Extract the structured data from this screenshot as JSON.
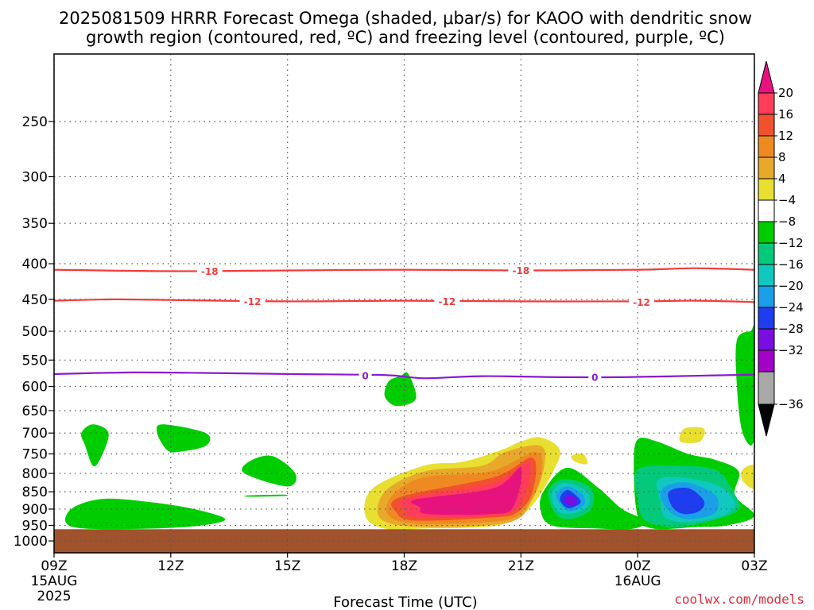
{
  "chart_data": {
    "type": "heatmap",
    "title_line1": "2025081509 HRRR Forecast Omega (shaded, μbar/s) for KAOO with dendritic snow",
    "title_line2": "growth region (contoured, red, ºC) and freezing level (contoured, purple, ºC)",
    "xlabel": "Forecast Time (UTC)",
    "credit": "coolwx.com/models",
    "x_ticks": [
      {
        "hour": 0,
        "label": "09Z",
        "sub1": "15AUG",
        "sub2": "2025"
      },
      {
        "hour": 3,
        "label": "12Z",
        "sub1": "",
        "sub2": ""
      },
      {
        "hour": 6,
        "label": "15Z",
        "sub1": "",
        "sub2": ""
      },
      {
        "hour": 9,
        "label": "18Z",
        "sub1": "",
        "sub2": ""
      },
      {
        "hour": 12,
        "label": "21Z",
        "sub1": "",
        "sub2": ""
      },
      {
        "hour": 15,
        "label": "00Z",
        "sub1": "16AUG",
        "sub2": ""
      },
      {
        "hour": 18,
        "label": "03Z",
        "sub1": "",
        "sub2": ""
      }
    ],
    "xlim": [
      0,
      18
    ],
    "ylim": [
      200,
      1040
    ],
    "y_scale": "log",
    "y_ticks": [
      250,
      300,
      350,
      400,
      450,
      500,
      550,
      600,
      650,
      700,
      750,
      800,
      850,
      900,
      950,
      1000
    ],
    "grid": true,
    "colorbar": {
      "ticks": [
        "20",
        "16",
        "12",
        "8",
        "4",
        "−4",
        "−8",
        "−12",
        "−16",
        "−20",
        "−24",
        "−28",
        "−32",
        "−36"
      ],
      "colors": [
        "#ff3d5a",
        "#f2512e",
        "#ef8a22",
        "#e8a92a",
        "#e8df30",
        "#ffffff",
        "#00cd00",
        "#05c97a",
        "#10c8bf",
        "#1a9fe8",
        "#1e3cf0",
        "#7a0ee0",
        "#a300c8",
        "#a8a8a8"
      ],
      "top_color": "#e8127f",
      "bottom_color": "#000000"
    },
    "contours": [
      {
        "value": "-18",
        "color": "#f23b3b",
        "points": [
          [
            0,
            408
          ],
          [
            3,
            410
          ],
          [
            6,
            409
          ],
          [
            9,
            408
          ],
          [
            12,
            409
          ],
          [
            15,
            408
          ],
          [
            16.5,
            406
          ],
          [
            18,
            408
          ]
        ],
        "labels": [
          [
            4.0,
            410
          ],
          [
            12.0,
            409
          ]
        ]
      },
      {
        "value": "-12",
        "color": "#f23b3b",
        "points": [
          [
            0,
            452
          ],
          [
            1.5,
            450
          ],
          [
            3,
            451
          ],
          [
            6,
            453
          ],
          [
            9,
            452
          ],
          [
            12,
            453
          ],
          [
            15,
            453
          ],
          [
            16.5,
            452
          ],
          [
            18,
            454
          ]
        ],
        "labels": [
          [
            5.1,
            453
          ],
          [
            10.1,
            453
          ],
          [
            15.1,
            454
          ]
        ]
      },
      {
        "value": "0",
        "color": "#8a1ad0",
        "points": [
          [
            0,
            576
          ],
          [
            2,
            573
          ],
          [
            4,
            574
          ],
          [
            6,
            576
          ],
          [
            8.5,
            578
          ],
          [
            9.5,
            584
          ],
          [
            11,
            580
          ],
          [
            13,
            582
          ],
          [
            14.5,
            582
          ],
          [
            16,
            580
          ],
          [
            18,
            577
          ]
        ],
        "labels": [
          [
            8.0,
            579
          ],
          [
            13.9,
            582
          ]
        ]
      }
    ],
    "omega_regions": [
      {
        "color": "#00cd00",
        "points": [
          [
            1.0,
            680
          ],
          [
            1.4,
            700
          ],
          [
            1.2,
            760
          ],
          [
            1.0,
            780
          ],
          [
            0.8,
            730
          ],
          [
            0.7,
            700
          ]
        ]
      },
      {
        "color": "#00cd00",
        "points": [
          [
            2.8,
            680
          ],
          [
            3.9,
            700
          ],
          [
            3.9,
            730
          ],
          [
            3.2,
            745
          ],
          [
            2.9,
            740
          ],
          [
            2.65,
            700
          ]
        ]
      },
      {
        "color": "#00cd00",
        "points": [
          [
            5.0,
            770
          ],
          [
            5.6,
            755
          ],
          [
            6.2,
            800
          ],
          [
            6.0,
            835
          ],
          [
            4.9,
            800
          ]
        ]
      },
      {
        "color": "#00cd00",
        "points": [
          [
            5.0,
            860
          ],
          [
            5.9,
            858
          ],
          [
            5.9,
            862
          ],
          [
            5.0,
            864
          ]
        ]
      },
      {
        "color": "#00cd00",
        "points": [
          [
            8.9,
            580
          ],
          [
            9.1,
            575
          ],
          [
            9.3,
            625
          ],
          [
            8.8,
            640
          ],
          [
            8.5,
            620
          ],
          [
            8.6,
            590
          ]
        ]
      },
      {
        "color": "#00cd00",
        "points": [
          [
            0.5,
            895
          ],
          [
            1.3,
            870
          ],
          [
            2.5,
            880
          ],
          [
            3.6,
            900
          ],
          [
            4.4,
            930
          ],
          [
            3.8,
            950
          ],
          [
            2.5,
            960
          ],
          [
            0.8,
            960
          ],
          [
            0.3,
            940
          ]
        ]
      },
      {
        "color": "#00cd00",
        "points": [
          [
            17.55,
            515
          ],
          [
            17.9,
            500
          ],
          [
            18,
            505
          ],
          [
            18,
            710
          ],
          [
            17.7,
            700
          ],
          [
            17.55,
            600
          ]
        ]
      },
      {
        "color": "#e8df30",
        "points": [
          [
            16.2,
            690
          ],
          [
            16.7,
            690
          ],
          [
            16.6,
            720
          ],
          [
            16.1,
            720
          ]
        ]
      },
      {
        "color": "#e8df30",
        "points": [
          [
            13.3,
            755
          ],
          [
            13.6,
            750
          ],
          [
            13.7,
            775
          ],
          [
            13.4,
            770
          ]
        ]
      },
      {
        "color": "#e8df30",
        "points": [
          [
            17.7,
            790
          ],
          [
            18,
            780
          ],
          [
            18,
            840
          ],
          [
            17.7,
            820
          ]
        ]
      },
      {
        "color": "#e8df30",
        "points": [
          [
            8.2,
            840
          ],
          [
            9.5,
            780
          ],
          [
            10.5,
            770
          ],
          [
            11.5,
            740
          ],
          [
            12.0,
            720
          ],
          [
            12.5,
            710
          ],
          [
            13.0,
            740
          ],
          [
            12.8,
            800
          ],
          [
            12.2,
            900
          ],
          [
            11.4,
            950
          ],
          [
            9.5,
            960
          ],
          [
            8.5,
            960
          ],
          [
            8.0,
            920
          ]
        ]
      },
      {
        "color": "#e8a92a",
        "points": [
          [
            8.5,
            850
          ],
          [
            9.5,
            795
          ],
          [
            11.0,
            780
          ],
          [
            11.6,
            745
          ],
          [
            12.5,
            730
          ],
          [
            12.6,
            780
          ],
          [
            12.3,
            870
          ],
          [
            11.7,
            940
          ],
          [
            9.5,
            955
          ],
          [
            8.4,
            930
          ]
        ]
      },
      {
        "color": "#ef8a22",
        "points": [
          [
            8.7,
            860
          ],
          [
            9.5,
            810
          ],
          [
            11.2,
            795
          ],
          [
            12.4,
            745
          ],
          [
            12.5,
            810
          ],
          [
            12.1,
            900
          ],
          [
            11.5,
            935
          ],
          [
            9.4,
            945
          ],
          [
            8.6,
            920
          ]
        ]
      },
      {
        "color": "#f2512e",
        "points": [
          [
            8.9,
            865
          ],
          [
            11.3,
            810
          ],
          [
            12.3,
            760
          ],
          [
            12.3,
            850
          ],
          [
            11.9,
            910
          ],
          [
            11.3,
            925
          ],
          [
            9.3,
            935
          ],
          [
            8.8,
            910
          ]
        ]
      },
      {
        "color": "#ff3d5a",
        "points": [
          [
            9.1,
            868
          ],
          [
            11.3,
            825
          ],
          [
            12.2,
            770
          ],
          [
            12.1,
            860
          ],
          [
            11.6,
            915
          ],
          [
            9.4,
            925
          ],
          [
            9.0,
            900
          ]
        ]
      },
      {
        "color": "#e8127f",
        "points": [
          [
            9.3,
            872
          ],
          [
            11.3,
            840
          ],
          [
            12.0,
            785
          ],
          [
            11.8,
            895
          ],
          [
            11.2,
            915
          ],
          [
            9.6,
            915
          ],
          [
            9.4,
            895
          ]
        ]
      },
      {
        "color": "#00cd00",
        "points": [
          [
            12.6,
            845
          ],
          [
            13.2,
            785
          ],
          [
            14.0,
            840
          ],
          [
            14.6,
            900
          ],
          [
            15.2,
            935
          ],
          [
            14.9,
            960
          ],
          [
            14.0,
            960
          ],
          [
            12.8,
            950
          ],
          [
            12.5,
            900
          ]
        ]
      },
      {
        "color": "#05c97a",
        "points": [
          [
            12.7,
            850
          ],
          [
            13.1,
            815
          ],
          [
            13.8,
            840
          ],
          [
            13.8,
            900
          ],
          [
            13.3,
            930
          ],
          [
            12.9,
            915
          ]
        ]
      },
      {
        "color": "#10c8bf",
        "points": [
          [
            12.8,
            855
          ],
          [
            13.1,
            825
          ],
          [
            13.7,
            850
          ],
          [
            13.7,
            895
          ],
          [
            13.2,
            915
          ],
          [
            12.9,
            900
          ]
        ]
      },
      {
        "color": "#1a9fe8",
        "points": [
          [
            12.9,
            860
          ],
          [
            13.2,
            835
          ],
          [
            13.6,
            860
          ],
          [
            13.6,
            890
          ],
          [
            13.2,
            905
          ]
        ]
      },
      {
        "color": "#1e3cf0",
        "points": [
          [
            13.0,
            870
          ],
          [
            13.2,
            845
          ],
          [
            13.5,
            870
          ],
          [
            13.5,
            885
          ],
          [
            13.2,
            897
          ]
        ]
      },
      {
        "color": "#7a0ee0",
        "points": [
          [
            13.1,
            875
          ],
          [
            13.25,
            860
          ],
          [
            13.45,
            875
          ],
          [
            13.3,
            890
          ]
        ]
      },
      {
        "color": "#00cd00",
        "points": [
          [
            15.0,
            715
          ],
          [
            15.5,
            720
          ],
          [
            16.3,
            750
          ],
          [
            17.0,
            765
          ],
          [
            17.6,
            795
          ],
          [
            17.5,
            860
          ],
          [
            18,
            920
          ],
          [
            17.3,
            950
          ],
          [
            16.5,
            955
          ],
          [
            15.4,
            960
          ],
          [
            15.0,
            920
          ],
          [
            14.9,
            780
          ]
        ]
      },
      {
        "color": "#05c97a",
        "points": [
          [
            15.0,
            790
          ],
          [
            16.0,
            780
          ],
          [
            17.0,
            790
          ],
          [
            17.4,
            840
          ],
          [
            17.6,
            900
          ],
          [
            16.9,
            935
          ],
          [
            16.0,
            955
          ],
          [
            15.2,
            935
          ],
          [
            15.0,
            870
          ]
        ]
      },
      {
        "color": "#10c8bf",
        "points": [
          [
            15.5,
            820
          ],
          [
            16.0,
            810
          ],
          [
            17.0,
            830
          ],
          [
            17.5,
            880
          ],
          [
            17.2,
            920
          ],
          [
            16.3,
            940
          ],
          [
            15.7,
            925
          ],
          [
            15.6,
            880
          ]
        ]
      },
      {
        "color": "#1a9fe8",
        "points": [
          [
            15.7,
            835
          ],
          [
            16.3,
            825
          ],
          [
            17.0,
            860
          ],
          [
            17.0,
            910
          ],
          [
            16.4,
            930
          ],
          [
            15.9,
            915
          ],
          [
            15.6,
            870
          ]
        ]
      },
      {
        "color": "#1e3cf0",
        "points": [
          [
            15.8,
            850
          ],
          [
            16.3,
            840
          ],
          [
            16.7,
            875
          ],
          [
            16.6,
            905
          ],
          [
            16.2,
            915
          ],
          [
            15.9,
            895
          ]
        ]
      }
    ],
    "ground": {
      "color": "#a0522d",
      "top_hpa": 962
    }
  }
}
